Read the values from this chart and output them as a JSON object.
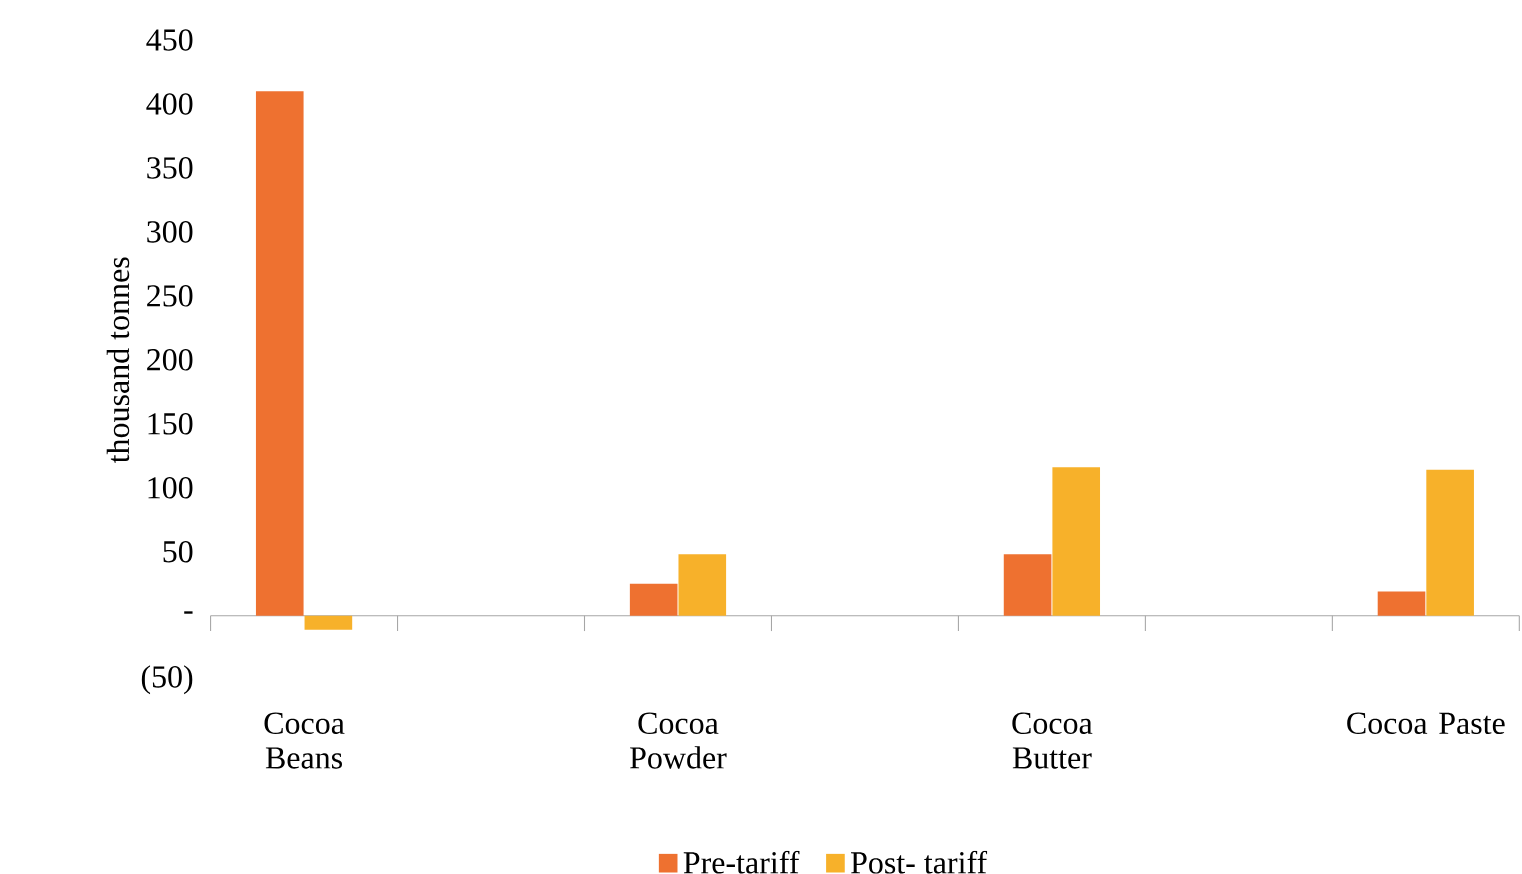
{
  "chart_data": {
    "type": "bar",
    "ylabel": "thousand tonnes",
    "categories": [
      "Cocoa Beans",
      null,
      "Cocoa Powder",
      null,
      "Cocoa Butter",
      null,
      "Cocoa Paste"
    ],
    "series": [
      {
        "name": "Pre-tariff",
        "color": "#ee7130",
        "values": [
          410,
          null,
          25,
          null,
          48,
          null,
          19
        ]
      },
      {
        "name": "Post- tariff",
        "color": "#f7b12a",
        "values": [
          -11,
          null,
          48,
          null,
          116,
          null,
          114
        ]
      }
    ],
    "ylim": [
      -50,
      450
    ],
    "yticks": [
      {
        "value": -50,
        "label": "(50)"
      },
      {
        "value": 0,
        "label": "-"
      },
      50,
      100,
      150,
      200,
      250,
      300,
      350,
      400,
      450
    ],
    "legend": "bottom"
  }
}
